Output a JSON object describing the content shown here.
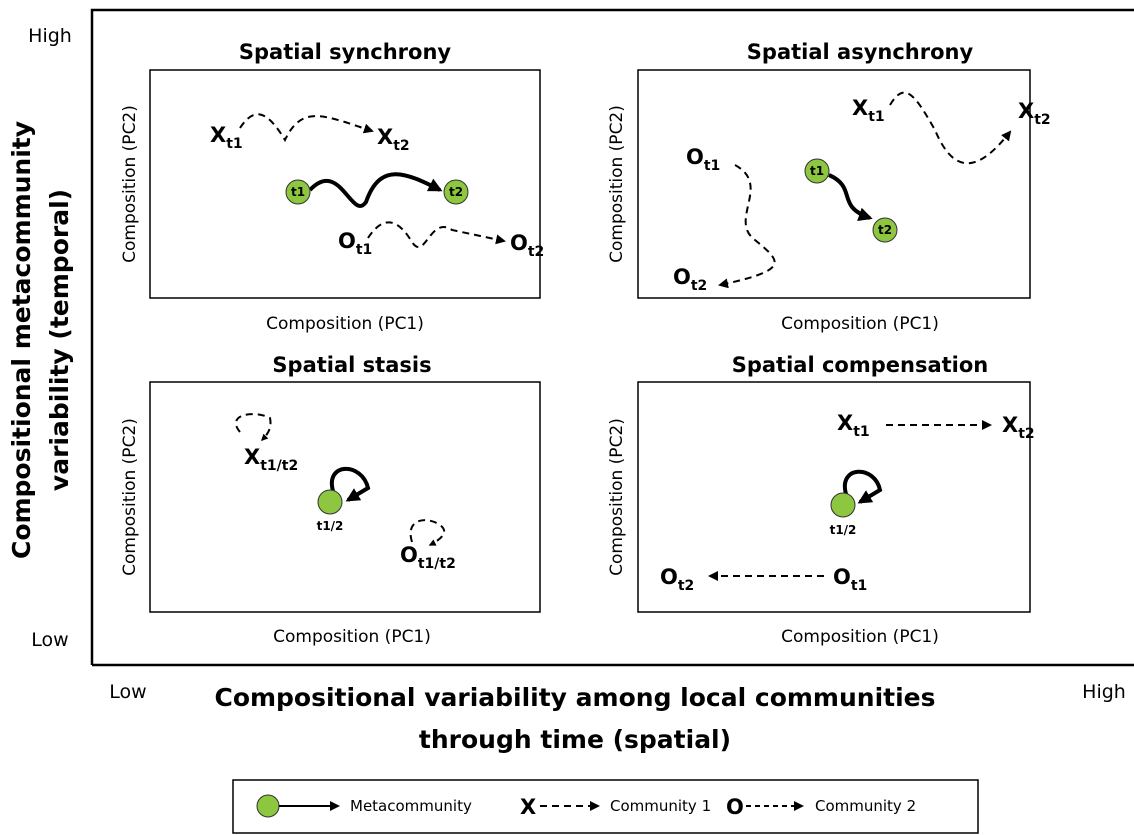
{
  "y_axis": {
    "high": "High",
    "low": "Low",
    "title_lines": [
      "Compositional metacommunity",
      "variability (temporal)"
    ]
  },
  "x_axis": {
    "low": "Low",
    "high": "High",
    "title_lines": [
      "Compositional variability among local communities",
      "through time (spatial)"
    ]
  },
  "panels": [
    {
      "title": "Spatial synchrony",
      "x_label": "Composition (PC1)",
      "y_label": "Composition (PC2)",
      "labels": [
        {
          "base": "X",
          "sub": "t1"
        },
        {
          "base": "X",
          "sub": "t2"
        },
        {
          "base": "O",
          "sub": "t1"
        },
        {
          "base": "O",
          "sub": "t2"
        }
      ],
      "nodes": [
        "t1",
        "t2"
      ]
    },
    {
      "title": "Spatial asynchrony",
      "x_label": "Composition (PC1)",
      "y_label": "Composition (PC2)",
      "labels": [
        {
          "base": "X",
          "sub": "t1"
        },
        {
          "base": "X",
          "sub": "t2"
        },
        {
          "base": "O",
          "sub": "t1"
        },
        {
          "base": "O",
          "sub": "t2"
        }
      ],
      "nodes": [
        "t1",
        "t2"
      ]
    },
    {
      "title": "Spatial stasis",
      "x_label": "Composition (PC1)",
      "y_label": "Composition (PC2)",
      "labels": [
        {
          "base": "X",
          "sub": "t1/t2"
        },
        {
          "base": "O",
          "sub": "t1/t2"
        }
      ],
      "nodes": [
        "t1/2"
      ]
    },
    {
      "title": "Spatial compensation",
      "x_label": "Composition (PC1)",
      "y_label": "Composition (PC2)",
      "labels": [
        {
          "base": "X",
          "sub": "t1"
        },
        {
          "base": "X",
          "sub": "t2"
        },
        {
          "base": "O",
          "sub": "t2"
        },
        {
          "base": "O",
          "sub": "t1"
        }
      ],
      "nodes": [
        "t1/2"
      ]
    }
  ],
  "legend": {
    "items": [
      {
        "marker": "",
        "label": "Metacommunity"
      },
      {
        "marker": "X",
        "label": "Community 1"
      },
      {
        "marker": "O",
        "label": "Community 2"
      }
    ]
  }
}
